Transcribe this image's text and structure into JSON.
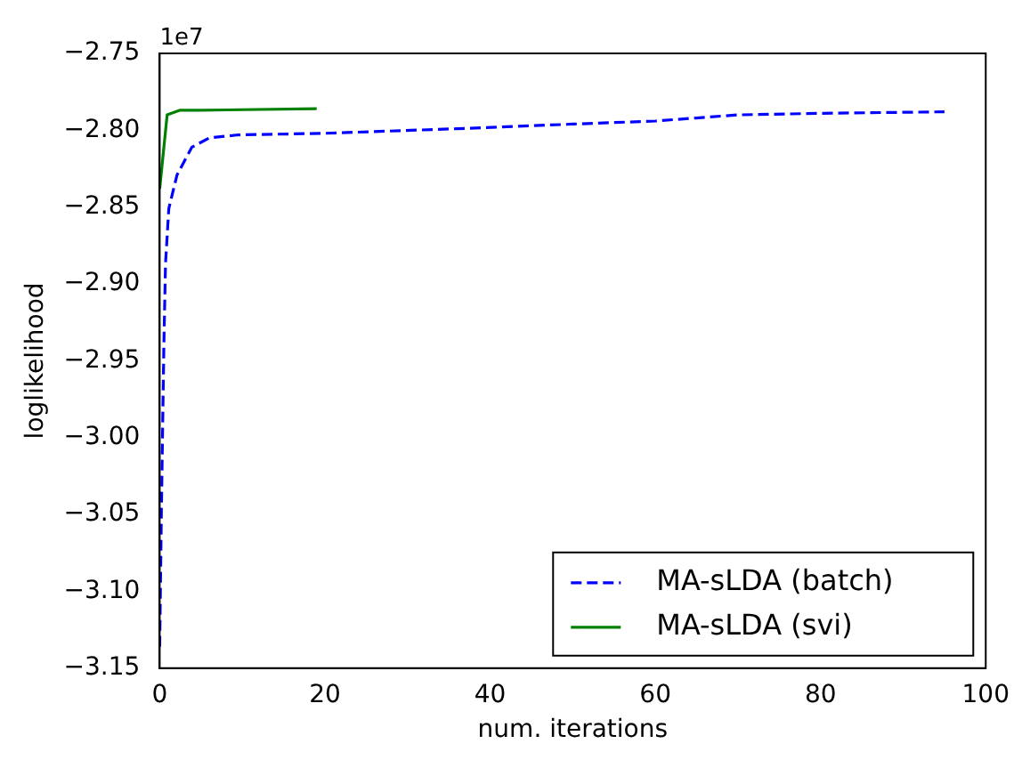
{
  "chart_data": {
    "type": "line",
    "xlabel": "num. iterations",
    "ylabel": "loglikelihood",
    "annotations": [
      "1e7"
    ],
    "xlim": [
      0,
      100
    ],
    "xticks": [
      0,
      20,
      40,
      60,
      80,
      100
    ],
    "ylim": [
      -3.15,
      -2.75
    ],
    "yticks": [
      -3.15,
      {
        "value": -3.1,
        "label": "−3.10"
      },
      -3.05,
      {
        "value": -3.0,
        "label": "−3.00"
      },
      -2.95,
      {
        "value": -2.9,
        "label": "−2.90"
      },
      -2.85,
      {
        "value": -2.8,
        "label": "−2.80"
      },
      -2.75
    ],
    "grid": false,
    "legend": "bottom right",
    "marker": "none",
    "series": [
      {
        "name": "MA-sLDA (batch)",
        "color": "#0000ff",
        "line_style": "dashed",
        "x": [
          0,
          0.2,
          0.5,
          0.7,
          1.1,
          2.1,
          3.9,
          6,
          9.5,
          20,
          36,
          50,
          60,
          65,
          70,
          80,
          95
        ],
        "values": [
          -3.136,
          -3.049,
          -2.941,
          -2.887,
          -2.851,
          -2.829,
          -2.811,
          -2.805,
          -2.803,
          -2.802,
          -2.799,
          -2.796,
          -2.794,
          -2.792,
          -2.79,
          -2.789,
          -2.788
        ]
      },
      {
        "name": "MA-sLDA (svi)",
        "color": "#008000",
        "line_style": "solid",
        "x": [
          0,
          0.9,
          2.4,
          5,
          19
        ],
        "values": [
          -2.838,
          -2.79,
          -2.787,
          -2.787,
          -2.786
        ]
      }
    ]
  }
}
